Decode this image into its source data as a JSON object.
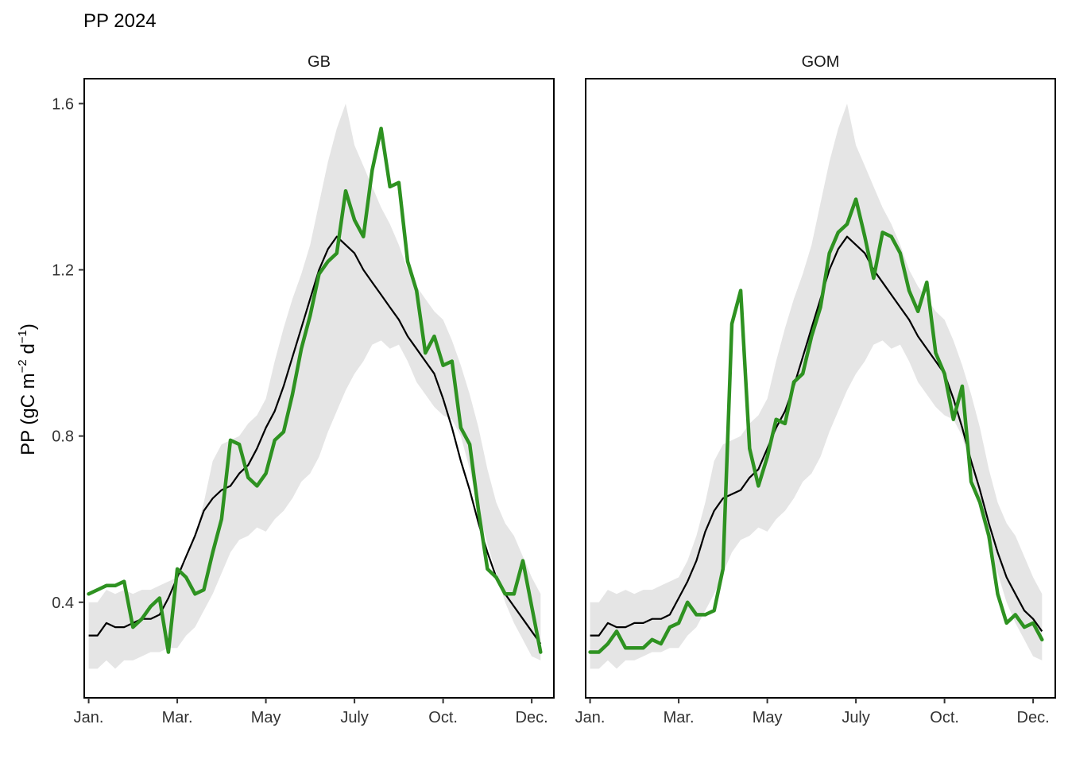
{
  "chart_data": {
    "type": "line",
    "title": "PP 2024",
    "ylabel": "PP (gC m^-2 d^-1)",
    "ylabel_parts": {
      "main": "PP (gC m",
      "sup1": "−2",
      "mid": " d",
      "sup2": "−1",
      "end": ")"
    },
    "ylim": [
      0.17,
      1.66
    ],
    "yticks": [
      0.4,
      0.8,
      1.2,
      1.6
    ],
    "ytick_labels": [
      "0.4",
      "0.8",
      "1.2",
      "1.6"
    ],
    "xlim": [
      0.5,
      53.5
    ],
    "xticks": [
      1,
      11,
      21,
      31,
      41,
      51
    ],
    "xtick_labels": [
      "Jan.",
      "Mar.",
      "May",
      "July",
      "Oct.",
      "Dec."
    ],
    "x": [
      1,
      2,
      3,
      4,
      5,
      6,
      7,
      8,
      9,
      10,
      11,
      12,
      13,
      14,
      15,
      16,
      17,
      18,
      19,
      20,
      21,
      22,
      23,
      24,
      25,
      26,
      27,
      28,
      29,
      30,
      31,
      32,
      33,
      34,
      35,
      36,
      37,
      38,
      39,
      40,
      41,
      42,
      43,
      44,
      45,
      46,
      47,
      48,
      49,
      50,
      51,
      52
    ],
    "colors": {
      "current": "#2e9221",
      "mean": "#000000",
      "band": "#e5e5e5",
      "border": "#000000"
    },
    "grid": false,
    "legend": "none",
    "panels": [
      {
        "name": "GB",
        "series": [
          {
            "role": "band",
            "lower": [
              0.24,
              0.24,
              0.26,
              0.24,
              0.26,
              0.26,
              0.27,
              0.28,
              0.28,
              0.29,
              0.29,
              0.32,
              0.34,
              0.38,
              0.42,
              0.47,
              0.52,
              0.55,
              0.56,
              0.58,
              0.57,
              0.6,
              0.62,
              0.65,
              0.69,
              0.71,
              0.75,
              0.81,
              0.86,
              0.91,
              0.95,
              0.98,
              1.02,
              1.03,
              1.01,
              1.02,
              0.98,
              0.93,
              0.9,
              0.87,
              0.85,
              0.84,
              0.8,
              0.72,
              0.62,
              0.54,
              0.47,
              0.4,
              0.35,
              0.31,
              0.27,
              0.26
            ],
            "upper": [
              0.4,
              0.4,
              0.43,
              0.42,
              0.43,
              0.42,
              0.43,
              0.43,
              0.44,
              0.45,
              0.46,
              0.5,
              0.56,
              0.64,
              0.74,
              0.78,
              0.79,
              0.8,
              0.83,
              0.85,
              0.89,
              0.98,
              1.06,
              1.13,
              1.19,
              1.26,
              1.36,
              1.46,
              1.54,
              1.6,
              1.5,
              1.45,
              1.4,
              1.35,
              1.31,
              1.26,
              1.2,
              1.16,
              1.13,
              1.1,
              1.08,
              1.03,
              0.97,
              0.9,
              0.82,
              0.72,
              0.64,
              0.59,
              0.56,
              0.51,
              0.46,
              0.42
            ]
          },
          {
            "role": "mean",
            "values": [
              0.32,
              0.32,
              0.35,
              0.34,
              0.34,
              0.35,
              0.36,
              0.36,
              0.37,
              0.41,
              0.46,
              0.51,
              0.56,
              0.62,
              0.65,
              0.67,
              0.68,
              0.71,
              0.73,
              0.77,
              0.82,
              0.86,
              0.92,
              0.99,
              1.06,
              1.13,
              1.2,
              1.25,
              1.28,
              1.26,
              1.24,
              1.2,
              1.17,
              1.14,
              1.11,
              1.08,
              1.04,
              1.01,
              0.98,
              0.95,
              0.89,
              0.82,
              0.74,
              0.67,
              0.59,
              0.52,
              0.46,
              0.42,
              0.39,
              0.36,
              0.33,
              0.3
            ]
          },
          {
            "role": "current",
            "values": [
              0.42,
              0.43,
              0.44,
              0.44,
              0.45,
              0.34,
              0.36,
              0.39,
              0.41,
              0.28,
              0.48,
              0.46,
              0.42,
              0.43,
              0.52,
              0.6,
              0.79,
              0.78,
              0.7,
              0.68,
              0.71,
              0.79,
              0.81,
              0.9,
              1.01,
              1.09,
              1.19,
              1.22,
              1.24,
              1.39,
              1.32,
              1.28,
              1.44,
              1.54,
              1.4,
              1.41,
              1.22,
              1.15,
              1.0,
              1.04,
              0.97,
              0.98,
              0.82,
              0.78,
              0.62,
              0.48,
              0.46,
              0.42,
              0.42,
              0.5,
              0.39,
              0.28
            ]
          }
        ]
      },
      {
        "name": "GOM",
        "series": [
          {
            "role": "band",
            "lower": [
              0.24,
              0.24,
              0.26,
              0.24,
              0.26,
              0.26,
              0.27,
              0.28,
              0.28,
              0.29,
              0.29,
              0.32,
              0.34,
              0.38,
              0.42,
              0.47,
              0.52,
              0.55,
              0.56,
              0.58,
              0.57,
              0.6,
              0.62,
              0.65,
              0.69,
              0.71,
              0.75,
              0.81,
              0.86,
              0.91,
              0.95,
              0.98,
              1.02,
              1.03,
              1.01,
              1.02,
              0.98,
              0.93,
              0.9,
              0.87,
              0.85,
              0.84,
              0.8,
              0.72,
              0.62,
              0.54,
              0.47,
              0.4,
              0.35,
              0.31,
              0.27,
              0.26
            ],
            "upper": [
              0.4,
              0.4,
              0.43,
              0.42,
              0.43,
              0.42,
              0.43,
              0.43,
              0.44,
              0.45,
              0.46,
              0.5,
              0.56,
              0.64,
              0.74,
              0.78,
              0.79,
              0.8,
              0.83,
              0.85,
              0.89,
              0.98,
              1.06,
              1.13,
              1.19,
              1.26,
              1.36,
              1.46,
              1.54,
              1.6,
              1.5,
              1.45,
              1.4,
              1.35,
              1.31,
              1.26,
              1.2,
              1.16,
              1.13,
              1.1,
              1.08,
              1.03,
              0.97,
              0.9,
              0.82,
              0.72,
              0.64,
              0.59,
              0.56,
              0.51,
              0.46,
              0.42
            ]
          },
          {
            "role": "mean",
            "values": [
              0.32,
              0.32,
              0.35,
              0.34,
              0.34,
              0.35,
              0.35,
              0.36,
              0.36,
              0.37,
              0.41,
              0.45,
              0.5,
              0.57,
              0.62,
              0.65,
              0.66,
              0.67,
              0.7,
              0.72,
              0.77,
              0.82,
              0.86,
              0.92,
              0.99,
              1.06,
              1.13,
              1.2,
              1.25,
              1.28,
              1.26,
              1.24,
              1.2,
              1.17,
              1.14,
              1.11,
              1.08,
              1.04,
              1.01,
              0.98,
              0.95,
              0.89,
              0.82,
              0.74,
              0.67,
              0.59,
              0.52,
              0.46,
              0.42,
              0.38,
              0.36,
              0.33
            ]
          },
          {
            "role": "current",
            "values": [
              0.28,
              0.28,
              0.3,
              0.33,
              0.29,
              0.29,
              0.29,
              0.31,
              0.3,
              0.34,
              0.35,
              0.4,
              0.37,
              0.37,
              0.38,
              0.48,
              1.07,
              1.15,
              0.77,
              0.68,
              0.75,
              0.84,
              0.83,
              0.93,
              0.95,
              1.04,
              1.11,
              1.24,
              1.29,
              1.31,
              1.37,
              1.28,
              1.18,
              1.29,
              1.28,
              1.24,
              1.15,
              1.1,
              1.17,
              1.0,
              0.95,
              0.84,
              0.92,
              0.69,
              0.64,
              0.56,
              0.42,
              0.35,
              0.37,
              0.34,
              0.35,
              0.31
            ]
          }
        ]
      }
    ]
  }
}
